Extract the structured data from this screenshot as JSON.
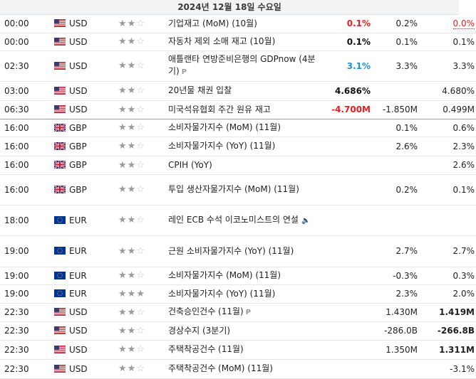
{
  "date_header": "2024년 12월 18일 수요일",
  "rows": [
    {
      "time": "00:00",
      "flag": "us",
      "currency": "USD",
      "stars": 2,
      "event": "기업재고 (MoM) (10월)",
      "actual": "0.1%",
      "actual_color": "red",
      "forecast": "0.2%",
      "previous": "0.0%",
      "previous_color": "red",
      "previous_dotted": true
    },
    {
      "time": "00:00",
      "flag": "us",
      "currency": "USD",
      "stars": 2,
      "event": "자동차 제외 소매 재고 (10월)",
      "actual": "0.1%",
      "actual_color": "black",
      "forecast": "0.1%",
      "previous": "0.1%"
    },
    {
      "time": "02:30",
      "flag": "us",
      "currency": "USD",
      "stars": 2,
      "event": "애틀랜타 연방준비은행의 GDPnow (4분기)",
      "event_icon": "preliminary-icon",
      "actual": "3.1%",
      "actual_color": "blue",
      "forecast": "3.3%",
      "previous": "3.3%"
    },
    {
      "time": "03:00",
      "flag": "us",
      "currency": "USD",
      "stars": 2,
      "event": "20년물 채권 입찰",
      "actual": "4.686%",
      "actual_color": "black",
      "forecast": "",
      "previous": "4.680%"
    },
    {
      "time": "06:30",
      "flag": "us",
      "currency": "USD",
      "stars": 2,
      "event": "미국석유협회 주간 원유 재고",
      "actual": "-4.700M",
      "actual_color": "red",
      "forecast": "-1.850M",
      "previous": "0.499M",
      "separator": true
    },
    {
      "time": "16:00",
      "flag": "gb",
      "currency": "GBP",
      "stars": 2,
      "event": "소비자물가지수 (MoM) (11월)",
      "actual": "",
      "forecast": "0.1%",
      "previous": "0.6%"
    },
    {
      "time": "16:00",
      "flag": "gb",
      "currency": "GBP",
      "stars": 2,
      "event": "소비자물가지수 (YoY) (11월)",
      "actual": "",
      "forecast": "2.6%",
      "previous": "2.3%"
    },
    {
      "time": "16:00",
      "flag": "gb",
      "currency": "GBP",
      "stars": 2,
      "event": "CPIH (YoY)",
      "actual": "",
      "forecast": "",
      "previous": "2.6%"
    },
    {
      "time": "16:00",
      "flag": "gb",
      "currency": "GBP",
      "stars": 2,
      "event": "투입 생산자물가지수 (MoM) (11월)",
      "actual": "",
      "forecast": "0.2%",
      "previous": "0.1%"
    },
    {
      "time": "18:00",
      "flag": "eu",
      "currency": "EUR",
      "stars": 2,
      "event": "레인 ECB 수석 이코노미스트의 연설",
      "event_icon": "speaker-icon",
      "actual": "",
      "forecast": "",
      "previous": ""
    },
    {
      "time": "19:00",
      "flag": "eu",
      "currency": "EUR",
      "stars": 2,
      "event": "근원 소비자물가지수 (YoY) (11월)",
      "actual": "",
      "forecast": "2.7%",
      "previous": "2.7%"
    },
    {
      "time": "19:00",
      "flag": "eu",
      "currency": "EUR",
      "stars": 2,
      "event": "소비자물가지수 (MoM) (11월)",
      "actual": "",
      "forecast": "-0.3%",
      "previous": "0.3%"
    },
    {
      "time": "19:00",
      "flag": "eu",
      "currency": "EUR",
      "stars": 3,
      "event": "소비자물가지수 (YoY) (11월)",
      "actual": "",
      "forecast": "2.3%",
      "previous": "2.0%"
    },
    {
      "time": "22:30",
      "flag": "us",
      "currency": "USD",
      "stars": 2,
      "event": "건축승인건수 (11월)",
      "event_icon": "preliminary-icon",
      "actual": "",
      "forecast": "1.430M",
      "previous": "1.419M",
      "previous_bold": true
    },
    {
      "time": "22:30",
      "flag": "us",
      "currency": "USD",
      "stars": 2,
      "event": "경상수지 (3분기)",
      "actual": "",
      "forecast": "-286.0B",
      "previous": "-266.8B",
      "previous_bold": true
    },
    {
      "time": "22:30",
      "flag": "us",
      "currency": "USD",
      "stars": 2,
      "event": "주택착공건수 (11월)",
      "actual": "",
      "forecast": "1.350M",
      "previous": "1.311M",
      "previous_bold": true
    },
    {
      "time": "22:30",
      "flag": "us",
      "currency": "USD",
      "stars": 2,
      "event": "주택착공건수 (MoM) (11월)",
      "actual": "",
      "forecast": "",
      "previous": "-3.1%"
    }
  ],
  "colors": {
    "red": "#e51f1f",
    "blue": "#1e90e0",
    "separator": "#9aa0a6"
  }
}
